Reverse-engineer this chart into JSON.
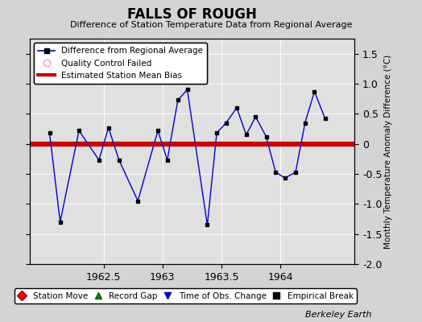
{
  "title": "FALLS OF ROUGH",
  "subtitle": "Difference of Station Temperature Data from Regional Average",
  "ylabel_right": "Monthly Temperature Anomaly Difference (°C)",
  "credit": "Berkeley Earth",
  "xlim": [
    1961.87,
    1964.63
  ],
  "ylim": [
    -2.0,
    1.75
  ],
  "yticks_right": [
    -2.0,
    -1.5,
    -1.0,
    -0.5,
    0.0,
    0.5,
    1.0,
    1.5
  ],
  "yticks_left": [
    -2.0,
    -1.5,
    -1.0,
    -0.5,
    0.0,
    0.5,
    1.0,
    1.5
  ],
  "xticks": [
    1962.5,
    1963.0,
    1963.5,
    1964.0
  ],
  "xtick_labels": [
    "1962.5",
    "1963",
    "1963.5",
    "1964"
  ],
  "mean_bias": 0.0,
  "line_color": "#0000cc",
  "bias_color": "#cc0000",
  "fig_bg_color": "#d4d4d4",
  "plot_bg_color": "#e0e0e0",
  "data_x": [
    1962.04,
    1962.13,
    1962.29,
    1962.46,
    1962.54,
    1962.63,
    1962.79,
    1962.96,
    1963.04,
    1963.13,
    1963.21,
    1963.38,
    1963.46,
    1963.54,
    1963.63,
    1963.71,
    1963.79,
    1963.88,
    1963.96,
    1964.04,
    1964.13,
    1964.21,
    1964.29,
    1964.38
  ],
  "data_y": [
    0.18,
    -1.3,
    0.22,
    -0.27,
    0.27,
    -0.27,
    -0.95,
    0.22,
    -0.27,
    0.73,
    0.9,
    -1.35,
    0.18,
    0.35,
    0.6,
    0.15,
    0.45,
    0.12,
    -0.47,
    -0.57,
    -0.47,
    0.35,
    0.87,
    0.42
  ]
}
